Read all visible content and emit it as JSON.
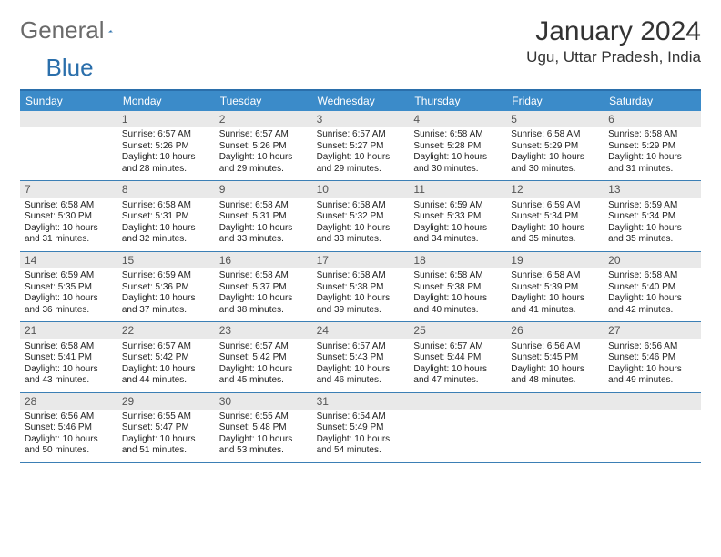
{
  "brand": {
    "name_part1": "General",
    "name_part2": "Blue",
    "logo_color": "#2b6fab"
  },
  "title": "January 2024",
  "location": "Ugu, Uttar Pradesh, India",
  "colors": {
    "header_bar": "#3b8bc9",
    "divider": "#3b7fb5",
    "daynum_bg": "#e9e9e9",
    "text": "#333333",
    "brand_text": "#6a6a6a"
  },
  "day_names": [
    "Sunday",
    "Monday",
    "Tuesday",
    "Wednesday",
    "Thursday",
    "Friday",
    "Saturday"
  ],
  "weeks": [
    [
      null,
      {
        "n": "1",
        "sr": "6:57 AM",
        "ss": "5:26 PM",
        "dl": "10 hours and 28 minutes."
      },
      {
        "n": "2",
        "sr": "6:57 AM",
        "ss": "5:26 PM",
        "dl": "10 hours and 29 minutes."
      },
      {
        "n": "3",
        "sr": "6:57 AM",
        "ss": "5:27 PM",
        "dl": "10 hours and 29 minutes."
      },
      {
        "n": "4",
        "sr": "6:58 AM",
        "ss": "5:28 PM",
        "dl": "10 hours and 30 minutes."
      },
      {
        "n": "5",
        "sr": "6:58 AM",
        "ss": "5:29 PM",
        "dl": "10 hours and 30 minutes."
      },
      {
        "n": "6",
        "sr": "6:58 AM",
        "ss": "5:29 PM",
        "dl": "10 hours and 31 minutes."
      }
    ],
    [
      {
        "n": "7",
        "sr": "6:58 AM",
        "ss": "5:30 PM",
        "dl": "10 hours and 31 minutes."
      },
      {
        "n": "8",
        "sr": "6:58 AM",
        "ss": "5:31 PM",
        "dl": "10 hours and 32 minutes."
      },
      {
        "n": "9",
        "sr": "6:58 AM",
        "ss": "5:31 PM",
        "dl": "10 hours and 33 minutes."
      },
      {
        "n": "10",
        "sr": "6:58 AM",
        "ss": "5:32 PM",
        "dl": "10 hours and 33 minutes."
      },
      {
        "n": "11",
        "sr": "6:59 AM",
        "ss": "5:33 PM",
        "dl": "10 hours and 34 minutes."
      },
      {
        "n": "12",
        "sr": "6:59 AM",
        "ss": "5:34 PM",
        "dl": "10 hours and 35 minutes."
      },
      {
        "n": "13",
        "sr": "6:59 AM",
        "ss": "5:34 PM",
        "dl": "10 hours and 35 minutes."
      }
    ],
    [
      {
        "n": "14",
        "sr": "6:59 AM",
        "ss": "5:35 PM",
        "dl": "10 hours and 36 minutes."
      },
      {
        "n": "15",
        "sr": "6:59 AM",
        "ss": "5:36 PM",
        "dl": "10 hours and 37 minutes."
      },
      {
        "n": "16",
        "sr": "6:58 AM",
        "ss": "5:37 PM",
        "dl": "10 hours and 38 minutes."
      },
      {
        "n": "17",
        "sr": "6:58 AM",
        "ss": "5:38 PM",
        "dl": "10 hours and 39 minutes."
      },
      {
        "n": "18",
        "sr": "6:58 AM",
        "ss": "5:38 PM",
        "dl": "10 hours and 40 minutes."
      },
      {
        "n": "19",
        "sr": "6:58 AM",
        "ss": "5:39 PM",
        "dl": "10 hours and 41 minutes."
      },
      {
        "n": "20",
        "sr": "6:58 AM",
        "ss": "5:40 PM",
        "dl": "10 hours and 42 minutes."
      }
    ],
    [
      {
        "n": "21",
        "sr": "6:58 AM",
        "ss": "5:41 PM",
        "dl": "10 hours and 43 minutes."
      },
      {
        "n": "22",
        "sr": "6:57 AM",
        "ss": "5:42 PM",
        "dl": "10 hours and 44 minutes."
      },
      {
        "n": "23",
        "sr": "6:57 AM",
        "ss": "5:42 PM",
        "dl": "10 hours and 45 minutes."
      },
      {
        "n": "24",
        "sr": "6:57 AM",
        "ss": "5:43 PM",
        "dl": "10 hours and 46 minutes."
      },
      {
        "n": "25",
        "sr": "6:57 AM",
        "ss": "5:44 PM",
        "dl": "10 hours and 47 minutes."
      },
      {
        "n": "26",
        "sr": "6:56 AM",
        "ss": "5:45 PM",
        "dl": "10 hours and 48 minutes."
      },
      {
        "n": "27",
        "sr": "6:56 AM",
        "ss": "5:46 PM",
        "dl": "10 hours and 49 minutes."
      }
    ],
    [
      {
        "n": "28",
        "sr": "6:56 AM",
        "ss": "5:46 PM",
        "dl": "10 hours and 50 minutes."
      },
      {
        "n": "29",
        "sr": "6:55 AM",
        "ss": "5:47 PM",
        "dl": "10 hours and 51 minutes."
      },
      {
        "n": "30",
        "sr": "6:55 AM",
        "ss": "5:48 PM",
        "dl": "10 hours and 53 minutes."
      },
      {
        "n": "31",
        "sr": "6:54 AM",
        "ss": "5:49 PM",
        "dl": "10 hours and 54 minutes."
      },
      null,
      null,
      null
    ]
  ],
  "labels": {
    "sunrise": "Sunrise:",
    "sunset": "Sunset:",
    "daylight": "Daylight:"
  }
}
